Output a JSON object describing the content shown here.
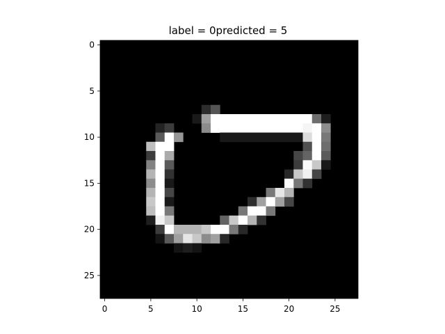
{
  "chart_data": {
    "type": "heatmap",
    "title": "label = 0predicted = 5",
    "xlabel": "",
    "ylabel": "",
    "colormap": "gray",
    "rows": 28,
    "cols": 28,
    "xlim": [
      -0.5,
      27.5
    ],
    "ylim": [
      27.5,
      -0.5
    ],
    "x_ticks": [
      0,
      5,
      10,
      15,
      20,
      25
    ],
    "y_ticks": [
      0,
      5,
      10,
      15,
      20,
      25
    ],
    "x_tick_labels": [
      "0",
      "5",
      "10",
      "15",
      "20",
      "25"
    ],
    "y_tick_labels": [
      "0",
      "5",
      "10",
      "15",
      "20",
      "25"
    ],
    "pixels": [
      [
        7,
        11,
        45
      ],
      [
        7,
        12,
        85
      ],
      [
        8,
        10,
        25
      ],
      [
        8,
        11,
        160
      ],
      [
        8,
        12,
        255
      ],
      [
        8,
        13,
        255
      ],
      [
        8,
        14,
        255
      ],
      [
        8,
        15,
        255
      ],
      [
        8,
        16,
        255
      ],
      [
        8,
        17,
        255
      ],
      [
        8,
        18,
        255
      ],
      [
        8,
        19,
        255
      ],
      [
        8,
        20,
        255
      ],
      [
        8,
        21,
        255
      ],
      [
        8,
        22,
        255
      ],
      [
        8,
        23,
        110
      ],
      [
        8,
        24,
        30
      ],
      [
        9,
        6,
        35
      ],
      [
        9,
        7,
        60
      ],
      [
        9,
        11,
        140
      ],
      [
        9,
        12,
        255
      ],
      [
        9,
        13,
        255
      ],
      [
        9,
        14,
        255
      ],
      [
        9,
        15,
        255
      ],
      [
        9,
        16,
        255
      ],
      [
        9,
        17,
        255
      ],
      [
        9,
        18,
        255
      ],
      [
        9,
        19,
        255
      ],
      [
        9,
        20,
        255
      ],
      [
        9,
        21,
        255
      ],
      [
        9,
        22,
        245
      ],
      [
        9,
        23,
        255
      ],
      [
        9,
        24,
        140
      ],
      [
        10,
        6,
        90
      ],
      [
        10,
        7,
        255
      ],
      [
        10,
        8,
        150
      ],
      [
        10,
        13,
        25
      ],
      [
        10,
        14,
        25
      ],
      [
        10,
        15,
        25
      ],
      [
        10,
        16,
        25
      ],
      [
        10,
        17,
        25
      ],
      [
        10,
        18,
        25
      ],
      [
        10,
        19,
        25
      ],
      [
        10,
        20,
        25
      ],
      [
        10,
        21,
        25
      ],
      [
        10,
        22,
        220
      ],
      [
        10,
        23,
        255
      ],
      [
        10,
        24,
        120
      ],
      [
        11,
        5,
        190
      ],
      [
        11,
        6,
        255
      ],
      [
        11,
        7,
        255
      ],
      [
        11,
        22,
        80
      ],
      [
        11,
        23,
        255
      ],
      [
        11,
        24,
        110
      ],
      [
        12,
        5,
        60
      ],
      [
        12,
        6,
        255
      ],
      [
        12,
        7,
        170
      ],
      [
        12,
        21,
        70
      ],
      [
        12,
        22,
        100
      ],
      [
        12,
        23,
        255
      ],
      [
        12,
        24,
        90
      ],
      [
        13,
        5,
        130
      ],
      [
        13,
        6,
        255
      ],
      [
        13,
        7,
        90
      ],
      [
        13,
        21,
        60
      ],
      [
        13,
        22,
        250
      ],
      [
        13,
        23,
        200
      ],
      [
        13,
        24,
        25
      ],
      [
        14,
        5,
        180
      ],
      [
        14,
        6,
        255
      ],
      [
        14,
        7,
        50
      ],
      [
        14,
        20,
        40
      ],
      [
        14,
        21,
        200
      ],
      [
        14,
        22,
        240
      ],
      [
        14,
        23,
        70
      ],
      [
        15,
        5,
        140
      ],
      [
        15,
        6,
        255
      ],
      [
        15,
        7,
        25
      ],
      [
        15,
        20,
        255
      ],
      [
        15,
        21,
        120
      ],
      [
        15,
        22,
        50
      ],
      [
        16,
        5,
        180
      ],
      [
        16,
        6,
        255
      ],
      [
        16,
        7,
        70
      ],
      [
        16,
        18,
        120
      ],
      [
        16,
        19,
        230
      ],
      [
        16,
        20,
        180
      ],
      [
        17,
        5,
        200
      ],
      [
        17,
        6,
        255
      ],
      [
        17,
        7,
        25
      ],
      [
        17,
        16,
        45
      ],
      [
        17,
        17,
        160
      ],
      [
        17,
        18,
        255
      ],
      [
        17,
        19,
        160
      ],
      [
        17,
        20,
        70
      ],
      [
        18,
        5,
        190
      ],
      [
        18,
        6,
        255
      ],
      [
        18,
        7,
        120
      ],
      [
        18,
        15,
        120
      ],
      [
        18,
        16,
        255
      ],
      [
        18,
        17,
        255
      ],
      [
        18,
        18,
        120
      ],
      [
        19,
        5,
        30
      ],
      [
        19,
        6,
        240
      ],
      [
        19,
        7,
        200
      ],
      [
        19,
        13,
        100
      ],
      [
        19,
        14,
        200
      ],
      [
        19,
        15,
        255
      ],
      [
        19,
        16,
        180
      ],
      [
        19,
        17,
        50
      ],
      [
        20,
        6,
        60
      ],
      [
        20,
        7,
        255
      ],
      [
        20,
        8,
        180
      ],
      [
        20,
        9,
        180
      ],
      [
        20,
        10,
        180
      ],
      [
        20,
        11,
        200
      ],
      [
        20,
        12,
        255
      ],
      [
        20,
        13,
        255
      ],
      [
        20,
        14,
        120
      ],
      [
        20,
        15,
        40
      ],
      [
        21,
        6,
        20
      ],
      [
        21,
        7,
        90
      ],
      [
        21,
        8,
        160
      ],
      [
        21,
        9,
        230
      ],
      [
        21,
        10,
        200
      ],
      [
        21,
        11,
        140
      ],
      [
        21,
        12,
        160
      ],
      [
        21,
        13,
        40
      ],
      [
        22,
        8,
        20
      ],
      [
        22,
        9,
        30
      ],
      [
        22,
        10,
        20
      ]
    ]
  }
}
